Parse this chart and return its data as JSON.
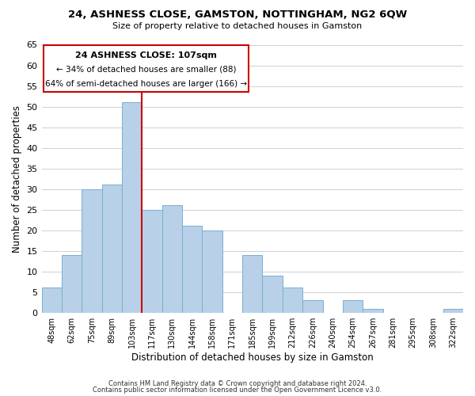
{
  "title": "24, ASHNESS CLOSE, GAMSTON, NOTTINGHAM, NG2 6QW",
  "subtitle": "Size of property relative to detached houses in Gamston",
  "xlabel": "Distribution of detached houses by size in Gamston",
  "ylabel": "Number of detached properties",
  "footer_line1": "Contains HM Land Registry data © Crown copyright and database right 2024.",
  "footer_line2": "Contains public sector information licensed under the Open Government Licence v3.0.",
  "annotation_line1": "24 ASHNESS CLOSE: 107sqm",
  "annotation_line2": "← 34% of detached houses are smaller (88)",
  "annotation_line3": "64% of semi-detached houses are larger (166) →",
  "bar_labels": [
    "48sqm",
    "62sqm",
    "75sqm",
    "89sqm",
    "103sqm",
    "117sqm",
    "130sqm",
    "144sqm",
    "158sqm",
    "171sqm",
    "185sqm",
    "199sqm",
    "212sqm",
    "226sqm",
    "240sqm",
    "254sqm",
    "267sqm",
    "281sqm",
    "295sqm",
    "308sqm",
    "322sqm"
  ],
  "bar_values": [
    6,
    14,
    30,
    31,
    51,
    25,
    26,
    21,
    20,
    0,
    14,
    9,
    6,
    3,
    0,
    3,
    1,
    0,
    0,
    0,
    1
  ],
  "bar_color": "#b8d0e8",
  "bar_edge_color": "#7aafd4",
  "vline_x": 4.5,
  "vline_color": "#cc0000",
  "ylim": [
    0,
    65
  ],
  "yticks": [
    0,
    5,
    10,
    15,
    20,
    25,
    30,
    35,
    40,
    45,
    50,
    55,
    60,
    65
  ],
  "annotation_box_color": "#ffffff",
  "annotation_box_edge": "#cc0000",
  "background_color": "#ffffff",
  "grid_color": "#d0d0d0"
}
